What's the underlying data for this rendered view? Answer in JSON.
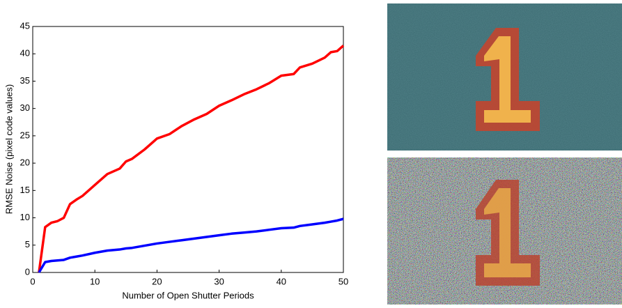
{
  "chart_data": {
    "type": "line",
    "x_label": "Number of Open Shutter Periods",
    "y_label": "RMSE Noise (pixel code values)",
    "x": [
      1,
      2,
      3,
      4,
      5,
      6,
      7,
      8,
      10,
      12,
      14,
      15,
      16,
      18,
      20,
      22,
      24,
      26,
      28,
      30,
      32,
      34,
      36,
      38,
      40,
      42,
      43,
      45,
      47,
      48,
      49,
      50
    ],
    "series": [
      {
        "color": "#ff0000",
        "values": [
          0,
          8.3,
          9.1,
          9.4,
          10,
          12.5,
          13.3,
          14,
          16,
          18,
          19,
          20.3,
          20.8,
          22.5,
          24.5,
          25.3,
          26.8,
          28,
          29,
          30.5,
          31.5,
          32.6,
          33.5,
          34.6,
          36,
          36.3,
          37.5,
          38.2,
          39.3,
          40.3,
          40.5,
          41.5
        ]
      },
      {
        "color": "#0000ff",
        "values": [
          0,
          1.9,
          2.1,
          2.2,
          2.3,
          2.7,
          2.9,
          3.1,
          3.6,
          4,
          4.2,
          4.4,
          4.5,
          4.9,
          5.3,
          5.6,
          5.9,
          6.2,
          6.5,
          6.8,
          7.1,
          7.3,
          7.5,
          7.8,
          8.1,
          8.2,
          8.5,
          8.8,
          9.1,
          9.3,
          9.5,
          9.8
        ]
      }
    ],
    "xlim": [
      0,
      50
    ],
    "xticks": [
      0,
      10,
      20,
      30,
      40,
      50
    ],
    "ylim": [
      0,
      45
    ],
    "yticks": [
      0,
      5,
      10,
      15,
      20,
      25,
      30,
      35,
      40,
      45
    ],
    "grid": false
  }
}
